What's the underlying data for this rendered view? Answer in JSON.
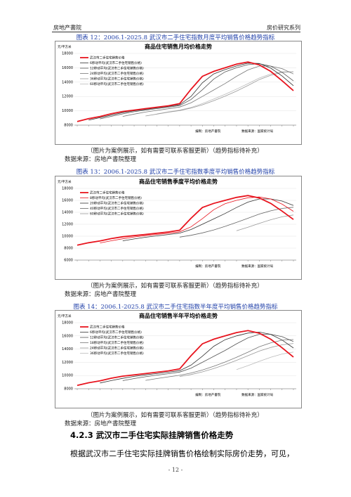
{
  "header": {
    "left": "房地产書院",
    "right": "房价研究系列"
  },
  "figures": [
    {
      "caption": "图表 12：2006.1-2025.8 武汉市二手住宅指数月度平均销售价格趋势指标",
      "chart": {
        "type": "line",
        "title": "商品住宅销售月均价格走势",
        "y_unit": "元/平方米",
        "ylim": [
          8000,
          18000
        ],
        "yticks": [
          8000,
          10000,
          12000,
          14000,
          16000,
          18000
        ],
        "series": [
          {
            "name": "武汉市二手住宅销售价格",
            "color": "#e8141e",
            "values": [
              8500,
              8900,
              9200,
              9600,
              9900,
              10100,
              10300,
              10500,
              10700,
              11000,
              13000,
              14800,
              15500,
              16000,
              16500,
              16800,
              16400,
              15500,
              14200,
              12800
            ]
          },
          {
            "name": "6移动平均(武汉市二手住宅销售价格)",
            "color": "#333333",
            "values": [
              null,
              8700,
              9050,
              9400,
              9750,
              10000,
              10200,
              10400,
              10600,
              10850,
              12000,
              13900,
              15150,
              15750,
              16250,
              16650,
              16600,
              15950,
              14850,
              13500
            ]
          },
          {
            "name": "12移动平均(武汉市二手住宅销售价格)",
            "color": "#555555",
            "values": [
              null,
              null,
              8870,
              9230,
              9570,
              9870,
              10100,
              10300,
              10500,
              10730,
              11570,
              12930,
              14430,
              15430,
              16000,
              16430,
              16570,
              16230,
              15370,
              14170
            ]
          },
          {
            "name": "24移动平均(武汉市二手住宅销售价格)",
            "color": "#777777",
            "values": [
              null,
              null,
              null,
              null,
              9220,
              9540,
              9820,
              10060,
              10280,
              10520,
              11120,
              12000,
              12900,
              13800,
              14800,
              15700,
              16240,
              16240,
              15880,
              15140
            ]
          },
          {
            "name": "36移动平均(武汉市二手住宅销售价格)",
            "color": "#999999",
            "values": [
              null,
              null,
              null,
              null,
              null,
              null,
              9270,
              9540,
              9800,
              10030,
              10380,
              10830,
              11400,
              12040,
              12750,
              13530,
              14350,
              14950,
              15350,
              15450
            ]
          },
          {
            "name": "60移动平均(武汉市二手住宅销售价格)",
            "color": "#bbbbbb",
            "values": [
              null,
              null,
              null,
              null,
              null,
              null,
              null,
              9570,
              9840,
              10100,
              10460,
              11000,
              11640,
              12300,
              13020,
              13780,
              14570,
              15130,
              15440,
              15430
            ]
          }
        ],
        "credits": [
          "编制：房地产書院",
          "数据来源：国家统计局"
        ]
      },
      "note": "（图片为案例展示，如有需要可联系客服更新）（趋势指标待补充）",
      "source": "数据来源：房地产書院整理"
    },
    {
      "caption": "图表 13：2006.1-2025.8 武汉市二手住宅指数季度平均销售价格趋势指标",
      "chart": {
        "type": "line",
        "title": "商品住宅销售季度平均价格走势",
        "y_unit": "元/平方米",
        "ylim": [
          6000,
          18000
        ],
        "yticks": [
          6000,
          8000,
          10000,
          12000,
          14000,
          16000,
          18000
        ],
        "series": [
          {
            "name": "武汉市二手住宅销售价格",
            "color": "#e8141e",
            "values": [
              8500,
              8900,
              9200,
              9600,
              9900,
              10100,
              10300,
              10500,
              10700,
              11000,
              13000,
              14800,
              15500,
              16000,
              16500,
              16800,
              16400,
              15500,
              14200,
              12800
            ]
          },
          {
            "name": "8移动平均(武汉市二手住宅销售价格)",
            "color": "#e8141e",
            "values": [
              null,
              null,
              8870,
              9230,
              9570,
              9870,
              10100,
              10300,
              10500,
              10730,
              11570,
              12930,
              14430,
              15430,
              16000,
              16430,
              16570,
              16230,
              15370,
              14170
            ]
          },
          {
            "name": "20移动平均(武汉市二手住宅销售价格)",
            "color": "#333333",
            "values": [
              null,
              null,
              null,
              null,
              9220,
              9540,
              9820,
              10060,
              10280,
              10520,
              11120,
              12000,
              12900,
              13800,
              14800,
              15700,
              16240,
              16240,
              15880,
              15140
            ]
          },
          {
            "name": "40移动平均(武汉市二手住宅销售价格)",
            "color": "#666666",
            "values": [
              null,
              null,
              null,
              null,
              null,
              null,
              null,
              null,
              null,
              9850,
              10150,
              10550,
              11050,
              11650,
              12300,
              13000,
              13700,
              14250,
              14650,
              14850
            ]
          },
          {
            "name": "60移动平均(武汉市二手住宅销售价格)",
            "color": "#999999",
            "values": [
              null,
              null,
              null,
              null,
              null,
              null,
              null,
              null,
              null,
              null,
              null,
              null,
              null,
              null,
              10900,
              11500,
              12150,
              12750,
              13250,
              13550
            ]
          }
        ],
        "credits": [
          "编制：房地产書院",
          "数据来源：国家统计局"
        ]
      },
      "note": "（图片为案例展示，如有需要可联系客服更新）（趋势指标待补充）",
      "source": "数据来源：房地产書院整理"
    },
    {
      "caption": "图表 14：2006.1-2025.8 武汉市二手住宅指数半年度平均销售价格趋势指标",
      "chart": {
        "type": "line",
        "title": "商品住宅销售半年平均价格走势",
        "y_unit": "元/平方米",
        "ylim": [
          8000,
          18000
        ],
        "yticks": [
          8000,
          10000,
          12000,
          14000,
          16000,
          18000
        ],
        "series": [
          {
            "name": "武汉市二手住宅销售价格",
            "color": "#e8141e",
            "values": [
              8500,
              8900,
              9200,
              9600,
              9900,
              10100,
              10300,
              10500,
              10700,
              11000,
              13000,
              14800,
              15500,
              16000,
              16500,
              16800,
              16400,
              15500,
              14200,
              12800
            ]
          },
          {
            "name": "6移动平均(武汉市二手住宅销售价格)",
            "color": "#333333",
            "values": [
              null,
              null,
              8870,
              9230,
              9570,
              9870,
              10100,
              10300,
              10500,
              10730,
              11570,
              12930,
              14430,
              15430,
              16000,
              16430,
              16570,
              16230,
              15370,
              14170
            ]
          },
          {
            "name": "12移动平均(武汉市二手住宅销售价格)",
            "color": "#555555",
            "values": [
              null,
              null,
              null,
              null,
              9220,
              9540,
              9820,
              10060,
              10280,
              10520,
              11120,
              12000,
              12900,
              13800,
              14800,
              15700,
              16240,
              16240,
              15880,
              15140
            ]
          },
          {
            "name": "18移动平均(武汉市二手住宅销售价格)",
            "color": "#777777",
            "values": [
              null,
              null,
              null,
              null,
              null,
              null,
              9270,
              9540,
              9800,
              10030,
              10380,
              10830,
              11400,
              12040,
              12750,
              13530,
              14350,
              14950,
              15350,
              15450
            ]
          },
          {
            "name": "24移动平均(武汉市二手住宅销售价格)",
            "color": "#999999",
            "values": [
              null,
              null,
              null,
              null,
              null,
              null,
              null,
              null,
              null,
              9850,
              10150,
              10550,
              11050,
              11650,
              12300,
              13000,
              13700,
              14250,
              14650,
              14850
            ]
          },
          {
            "name": "36移动平均(武汉市二手住宅销售价格)",
            "color": "#bbbbbb",
            "values": [
              null,
              null,
              null,
              null,
              null,
              null,
              null,
              null,
              null,
              null,
              null,
              null,
              null,
              null,
              10900,
              11500,
              12150,
              12750,
              13250,
              13550
            ]
          }
        ],
        "credits": [
          "编制：房地产書院",
          "数据来源：国家统计局"
        ]
      },
      "note": "（图片为案例展示，如有需要可联系客服更新）（趋势指标待补充）",
      "source": "数据来源：房地产書院整理"
    }
  ],
  "section": {
    "heading": "4.2.3 武汉市二手住宅实际挂牌销售价格走势"
  },
  "paragraph": "根据武汉市二手住宅实际挂牌销售价格绘制实际房价走势，可见，",
  "page_number": "- 12 -"
}
